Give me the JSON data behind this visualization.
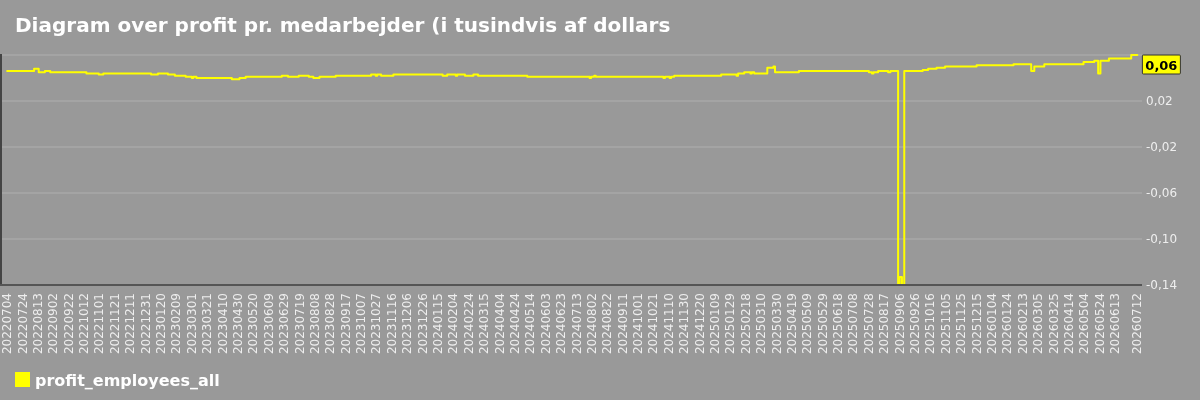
{
  "chart_data": {
    "type": "step",
    "title": "Diagram over profit pr. medarbejder (i tusindvis af dollars",
    "x": [
      "2022-07-04",
      "2022-08-08",
      "2022-08-14",
      "2022-08-22",
      "2022-08-29",
      "2022-10-15",
      "2022-10-31",
      "2022-11-06",
      "2023-01-07",
      "2023-01-16",
      "2023-01-29",
      "2023-02-07",
      "2023-02-21",
      "2023-03-01",
      "2023-03-03",
      "2023-03-07",
      "2023-04-22",
      "2023-05-02",
      "2023-05-10",
      "2023-06-26",
      "2023-07-04",
      "2023-07-18",
      "2023-07-31",
      "2023-08-06",
      "2023-08-14",
      "2023-09-04",
      "2023-10-20",
      "2023-10-26",
      "2023-10-28",
      "2023-11-02",
      "2023-11-18",
      "2024-01-21",
      "2024-01-27",
      "2024-02-07",
      "2024-02-09",
      "2024-02-19",
      "2024-03-01",
      "2024-03-07",
      "2024-05-10",
      "2024-07-30",
      "2024-08-01",
      "2024-08-05",
      "2024-08-07",
      "2024-11-03",
      "2024-11-05",
      "2024-11-11",
      "2024-11-13",
      "2024-11-17",
      "2025-01-17",
      "2025-02-06",
      "2025-02-08",
      "2025-02-16",
      "2025-02-24",
      "2025-02-26",
      "2025-03-01",
      "2025-03-18",
      "2025-03-26",
      "2025-03-28",
      "2025-04-28",
      "2025-07-28",
      "2025-08-01",
      "2025-08-03",
      "2025-08-09",
      "2025-08-22",
      "2025-08-25",
      "2025-09-04",
      "2025-09-06",
      "2025-09-09",
      "2025-09-12",
      "2025-10-06",
      "2025-10-13",
      "2025-10-24",
      "2025-11-04",
      "2025-12-15",
      "2026-02-01",
      "2026-02-24",
      "2026-02-28",
      "2026-03-13",
      "2026-05-03",
      "2026-05-17",
      "2026-05-22",
      "2026-05-25",
      "2026-06-05",
      "2026-07-04",
      "2026-07-12"
    ],
    "series": [
      {
        "name": "profit_employees_all",
        "color": "#ffff00",
        "values": [
          0.046,
          0.048,
          0.045,
          0.046,
          0.045,
          0.044,
          0.043,
          0.044,
          0.043,
          0.044,
          0.043,
          0.042,
          0.041,
          0.04,
          0.041,
          0.04,
          0.039,
          0.04,
          0.041,
          0.042,
          0.041,
          0.042,
          0.041,
          0.04,
          0.041,
          0.042,
          0.043,
          0.042,
          0.043,
          0.042,
          0.043,
          0.042,
          0.043,
          0.042,
          0.043,
          0.042,
          0.043,
          0.042,
          0.041,
          0.04,
          0.041,
          0.042,
          0.041,
          0.04,
          0.041,
          0.04,
          0.041,
          0.042,
          0.043,
          0.042,
          0.044,
          0.045,
          0.044,
          0.045,
          0.044,
          0.049,
          0.05,
          0.045,
          0.046,
          0.045,
          0.044,
          0.045,
          0.046,
          0.045,
          0.046,
          -0.14,
          -0.133,
          -0.14,
          0.046,
          0.047,
          0.048,
          0.049,
          0.05,
          0.051,
          0.052,
          0.046,
          0.05,
          0.052,
          0.054,
          0.055,
          0.044,
          0.055,
          0.057,
          0.06,
          0.06
        ]
      }
    ],
    "xlim": [
      "2022-06-26",
      "2026-07-18"
    ],
    "xticks": [
      {
        "value": "2022-07-04",
        "label": "20220704"
      },
      {
        "value": "2022-07-24",
        "label": "20220724"
      },
      {
        "value": "2022-08-13",
        "label": "20220813"
      },
      {
        "value": "2022-09-02",
        "label": "20220902"
      },
      {
        "value": "2022-09-22",
        "label": "20220922"
      },
      {
        "value": "2022-10-12",
        "label": "20221012"
      },
      {
        "value": "2022-11-01",
        "label": "20221101"
      },
      {
        "value": "2022-11-21",
        "label": "20221121"
      },
      {
        "value": "2022-12-11",
        "label": "20221211"
      },
      {
        "value": "2022-12-31",
        "label": "20221231"
      },
      {
        "value": "2023-01-20",
        "label": "20230120"
      },
      {
        "value": "2023-02-09",
        "label": "20230209"
      },
      {
        "value": "2023-03-01",
        "label": "20230301"
      },
      {
        "value": "2023-03-21",
        "label": "20230321"
      },
      {
        "value": "2023-04-10",
        "label": "20230410"
      },
      {
        "value": "2023-04-30",
        "label": "20230430"
      },
      {
        "value": "2023-05-20",
        "label": "20230520"
      },
      {
        "value": "2023-06-09",
        "label": "20230609"
      },
      {
        "value": "2023-06-29",
        "label": "20230629"
      },
      {
        "value": "2023-07-19",
        "label": "20230719"
      },
      {
        "value": "2023-08-08",
        "label": "20230808"
      },
      {
        "value": "2023-08-28",
        "label": "20230828"
      },
      {
        "value": "2023-09-17",
        "label": "20230917"
      },
      {
        "value": "2023-10-07",
        "label": "20231007"
      },
      {
        "value": "2023-10-27",
        "label": "20231027"
      },
      {
        "value": "2023-11-16",
        "label": "20231116"
      },
      {
        "value": "2023-12-06",
        "label": "20231206"
      },
      {
        "value": "2023-12-26",
        "label": "20231226"
      },
      {
        "value": "2024-01-15",
        "label": "20240115"
      },
      {
        "value": "2024-02-04",
        "label": "20240204"
      },
      {
        "value": "2024-02-24",
        "label": "20240224"
      },
      {
        "value": "2024-03-15",
        "label": "20240315"
      },
      {
        "value": "2024-04-04",
        "label": "20240404"
      },
      {
        "value": "2024-04-24",
        "label": "20240424"
      },
      {
        "value": "2024-05-14",
        "label": "20240514"
      },
      {
        "value": "2024-06-03",
        "label": "20240603"
      },
      {
        "value": "2024-06-23",
        "label": "20240623"
      },
      {
        "value": "2024-07-13",
        "label": "20240713"
      },
      {
        "value": "2024-08-02",
        "label": "20240802"
      },
      {
        "value": "2024-08-22",
        "label": "20240822"
      },
      {
        "value": "2024-09-11",
        "label": "20240911"
      },
      {
        "value": "2024-10-01",
        "label": "20241001"
      },
      {
        "value": "2024-10-21",
        "label": "20241021"
      },
      {
        "value": "2024-11-10",
        "label": "20241110"
      },
      {
        "value": "2024-11-30",
        "label": "20241130"
      },
      {
        "value": "2024-12-20",
        "label": "20241220"
      },
      {
        "value": "2025-01-09",
        "label": "20250109"
      },
      {
        "value": "2025-01-29",
        "label": "20250129"
      },
      {
        "value": "2025-02-18",
        "label": "20250218"
      },
      {
        "value": "2025-03-10",
        "label": "20250310"
      },
      {
        "value": "2025-03-30",
        "label": "20250330"
      },
      {
        "value": "2025-04-19",
        "label": "20250419"
      },
      {
        "value": "2025-05-09",
        "label": "20250509"
      },
      {
        "value": "2025-05-29",
        "label": "20250529"
      },
      {
        "value": "2025-06-18",
        "label": "20250618"
      },
      {
        "value": "2025-07-08",
        "label": "20250708"
      },
      {
        "value": "2025-07-28",
        "label": "20250728"
      },
      {
        "value": "2025-08-17",
        "label": "20250817"
      },
      {
        "value": "2025-09-06",
        "label": "20250906"
      },
      {
        "value": "2025-09-26",
        "label": "20250926"
      },
      {
        "value": "2025-10-16",
        "label": "20251016"
      },
      {
        "value": "2025-11-05",
        "label": "20251105"
      },
      {
        "value": "2025-11-25",
        "label": "20251125"
      },
      {
        "value": "2025-12-15",
        "label": "20251215"
      },
      {
        "value": "2026-01-04",
        "label": "20260104"
      },
      {
        "value": "2026-01-24",
        "label": "20260124"
      },
      {
        "value": "2026-02-13",
        "label": "20260213"
      },
      {
        "value": "2026-03-05",
        "label": "20260305"
      },
      {
        "value": "2026-03-25",
        "label": "20260325"
      },
      {
        "value": "2026-04-14",
        "label": "20260414"
      },
      {
        "value": "2026-05-04",
        "label": "20260504"
      },
      {
        "value": "2026-05-24",
        "label": "20260524"
      },
      {
        "value": "2026-06-13",
        "label": "20260613"
      },
      {
        "value": "2026-07-12",
        "label": "20260712"
      }
    ],
    "ylim": [
      -0.14,
      0.06
    ],
    "yticks": [
      {
        "value": 0.06,
        "label": null
      },
      {
        "value": 0.02,
        "label": "0,02"
      },
      {
        "value": -0.02,
        "label": "-0,02"
      },
      {
        "value": -0.06,
        "label": "-0,06"
      },
      {
        "value": -0.1,
        "label": "-0,10"
      },
      {
        "value": -0.14,
        "label": "-0,14"
      }
    ],
    "grid": "y",
    "legend": "bottom left",
    "annotations": [
      {
        "text": "0,06",
        "x": "2026-07-12",
        "y": 0.06
      }
    ]
  }
}
